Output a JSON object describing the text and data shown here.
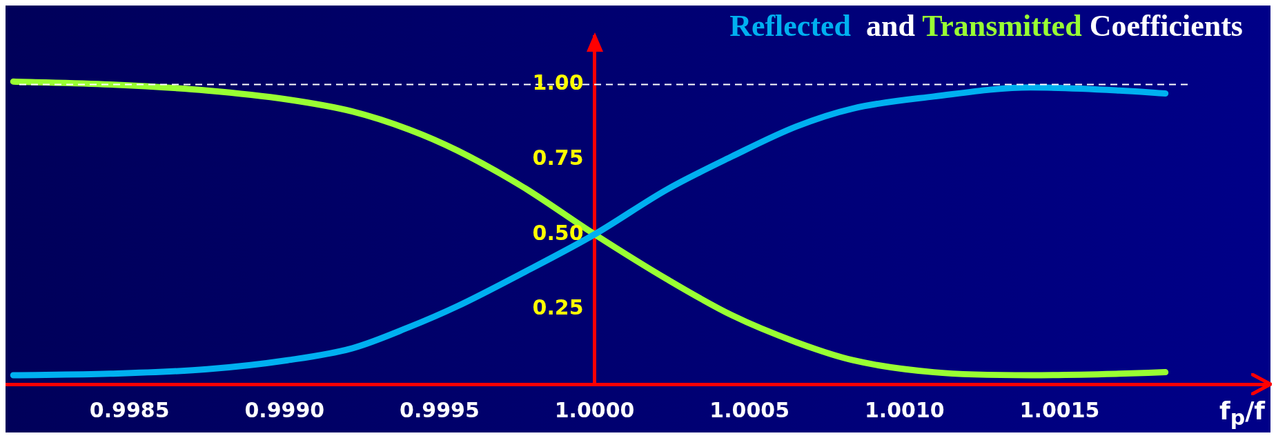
{
  "chart_data": {
    "type": "line",
    "title": "Reflected  and Transmitted Coefficients",
    "xlabel": "f$_{p}$/f",
    "x": [
      0.998125,
      0.998437,
      0.99875,
      0.99901,
      0.999219,
      0.999401,
      0.999557,
      0.999766,
      1.0,
      1.000234,
      1.000443,
      1.000651,
      1.000833,
      1.001094,
      1.001406,
      1.001693,
      1.001841
    ],
    "series": [
      {
        "color": "#00b0f0",
        "values": [
          0.03,
          0.035,
          0.05,
          0.08,
          0.12,
          0.19,
          0.26,
          0.37,
          0.5,
          0.65,
          0.76,
          0.86,
          0.92,
          0.96,
          0.99,
          0.98,
          0.97
        ]
      },
      {
        "color": "#99ff33",
        "values": [
          1.01,
          1.0,
          0.98,
          0.95,
          0.91,
          0.85,
          0.78,
          0.66,
          0.5,
          0.35,
          0.23,
          0.14,
          0.08,
          0.04,
          0.03,
          0.035,
          0.04
        ]
      }
    ],
    "xlim": [
      0.9981,
      1.00218
    ],
    "ylim": [
      0,
      1.16
    ],
    "xticks": [
      0.9985,
      {
        "value": 0.999,
        "label": "0.9990"
      },
      0.9995,
      {
        "value": 1.0,
        "label": "1.0000"
      },
      1.0005,
      {
        "value": 1.001,
        "label": "1.0010"
      },
      1.0015
    ],
    "yticks": [
      0.25,
      {
        "value": 0.5,
        "label": "0.50"
      },
      0.75,
      {
        "value": 1.0,
        "label": "1.00"
      }
    ],
    "ref_lines": [
      {
        "axis": "y",
        "value": 1.0,
        "color": "#ffffff",
        "line_style": "dashed"
      }
    ],
    "grid": false,
    "legend": false,
    "marker": "none",
    "line_style": "solid"
  }
}
